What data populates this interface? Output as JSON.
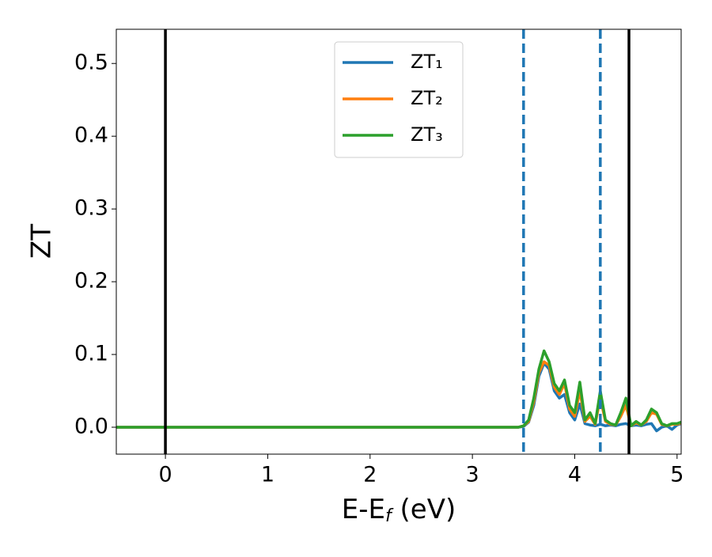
{
  "chart_data": {
    "type": "line",
    "xlabel": [
      "E-E",
      "f",
      " (eV)"
    ],
    "ylabel": "ZT",
    "x": [
      -0.48,
      3.4,
      3.45,
      3.5,
      3.55,
      3.6,
      3.65,
      3.7,
      3.75,
      3.8,
      3.85,
      3.9,
      3.95,
      4.0,
      4.05,
      4.1,
      4.15,
      4.2,
      4.25,
      4.3,
      4.35,
      4.4,
      4.45,
      4.5,
      4.55,
      4.6,
      4.65,
      4.7,
      4.75,
      4.8,
      4.85,
      4.9,
      4.95,
      5.0,
      5.04
    ],
    "series": [
      {
        "name": "ZT₁",
        "color": "#1f77b4",
        "values": [
          0,
          0,
          0,
          0.001,
          0.007,
          0.03,
          0.07,
          0.088,
          0.08,
          0.05,
          0.04,
          0.045,
          0.02,
          0.01,
          0.032,
          0.005,
          0.003,
          0.002,
          0.004,
          0.002,
          0.003,
          0.002,
          0.004,
          0.005,
          0.002,
          0.003,
          0.002,
          0.004,
          0.005,
          -0.005,
          0,
          0.002,
          -0.003,
          0.003,
          0.005
        ]
      },
      {
        "name": "ZT₂",
        "color": "#ff7f0e",
        "values": [
          0,
          0,
          0,
          0.002,
          0.008,
          0.035,
          0.075,
          0.09,
          0.085,
          0.055,
          0.045,
          0.06,
          0.025,
          0.015,
          0.05,
          0.008,
          0.015,
          0.004,
          0.04,
          0.008,
          0.004,
          0.003,
          0.015,
          0.03,
          0.002,
          0.006,
          0.003,
          0.008,
          0.02,
          0.018,
          0.004,
          0.002,
          0.004,
          0.004,
          0.006
        ]
      },
      {
        "name": "ZT₃",
        "color": "#2ca02c",
        "values": [
          0,
          0,
          0,
          0.002,
          0.01,
          0.04,
          0.08,
          0.105,
          0.09,
          0.06,
          0.05,
          0.065,
          0.03,
          0.02,
          0.062,
          0.01,
          0.02,
          0.005,
          0.05,
          0.01,
          0.005,
          0.003,
          0.02,
          0.04,
          0.002,
          0.008,
          0.003,
          0.01,
          0.025,
          0.02,
          0.005,
          0.002,
          0.005,
          0.005,
          0.007
        ]
      }
    ],
    "vlines": [
      {
        "x": 0,
        "color": "#000000",
        "style": "solid"
      },
      {
        "x": 4.53,
        "color": "#000000",
        "style": "solid"
      },
      {
        "x": 3.5,
        "color": "#1f77b4",
        "style": "dashed"
      },
      {
        "x": 4.25,
        "color": "#1f77b4",
        "style": "dashed"
      }
    ],
    "xlim": [
      -0.48,
      5.04
    ],
    "ylim": [
      -0.037,
      0.547
    ],
    "xticks": [
      0,
      1,
      2,
      3,
      4,
      5
    ],
    "yticks": [
      {
        "value": 0,
        "label": "0.0"
      },
      0.1,
      0.2,
      0.3,
      0.4,
      0.5
    ],
    "legend": "upper center",
    "grid": false
  }
}
